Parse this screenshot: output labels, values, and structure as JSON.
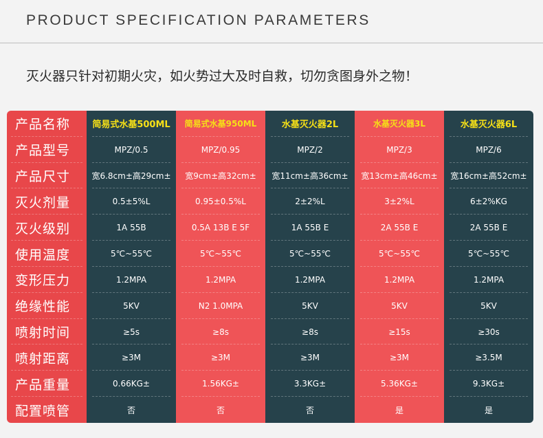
{
  "heading": "PRODUCT SPECIFICATION PARAMETERS",
  "warning": "灭火器只针对初期火灾，如火势过大及时自救，切勿贪图身外之物！",
  "table": {
    "row_labels": [
      "产品名称",
      "产品型号",
      "产品尺寸",
      "灭火剂量",
      "灭火级别",
      "使用温度",
      "变形压力",
      "绝缘性能",
      "喷射时间",
      "喷射距离",
      "产品重量",
      "配置喷管"
    ],
    "columns": [
      {
        "name": "简易式水基500ML",
        "values": [
          "MPZ/0.5",
          "宽6.8cm±高29cm±",
          "0.5±5%L",
          "1A 55B",
          "5℃~55℃",
          "1.2MPA",
          "5KV",
          "≥5s",
          "≥3M",
          "0.66KG±",
          "否"
        ]
      },
      {
        "name": "简易式水基950ML",
        "values": [
          "MPZ/0.95",
          "宽9cm±高32cm±",
          "0.95±0.5%L",
          "0.5A 13B E 5F",
          "5℃~55℃",
          "1.2MPA",
          "N2 1.0MPA",
          "≥8s",
          "≥3M",
          "1.56KG±",
          "否"
        ]
      },
      {
        "name": "水基灭火器2L",
        "values": [
          "MPZ/2",
          "宽11cm±高36cm±",
          "2±2%L",
          "1A 55B E",
          "5℃~55℃",
          "1.2MPA",
          "5KV",
          "≥8s",
          "≥3M",
          "3.3KG±",
          "否"
        ]
      },
      {
        "name": "水基灭火器3L",
        "values": [
          "MPZ/3",
          "宽13cm±高46cm±",
          "3±2%L",
          "2A 55B E",
          "5℃~55℃",
          "1.2MPA",
          "5KV",
          "≥15s",
          "≥3M",
          "5.36KG±",
          "是"
        ]
      },
      {
        "name": "水基灭火器6L",
        "values": [
          "MPZ/6",
          "宽16cm±高52cm±",
          "6±2%KG",
          "2A 55B E",
          "5℃~55℃",
          "1.2MPA",
          "5KV",
          "≥30s",
          "≥3.5M",
          "9.3KG±",
          "是"
        ]
      }
    ]
  },
  "colors": {
    "label_red": "#e8474a",
    "column_dark": "#26424b",
    "column_red": "#ef5457",
    "header_yellow": "#f6e017"
  }
}
